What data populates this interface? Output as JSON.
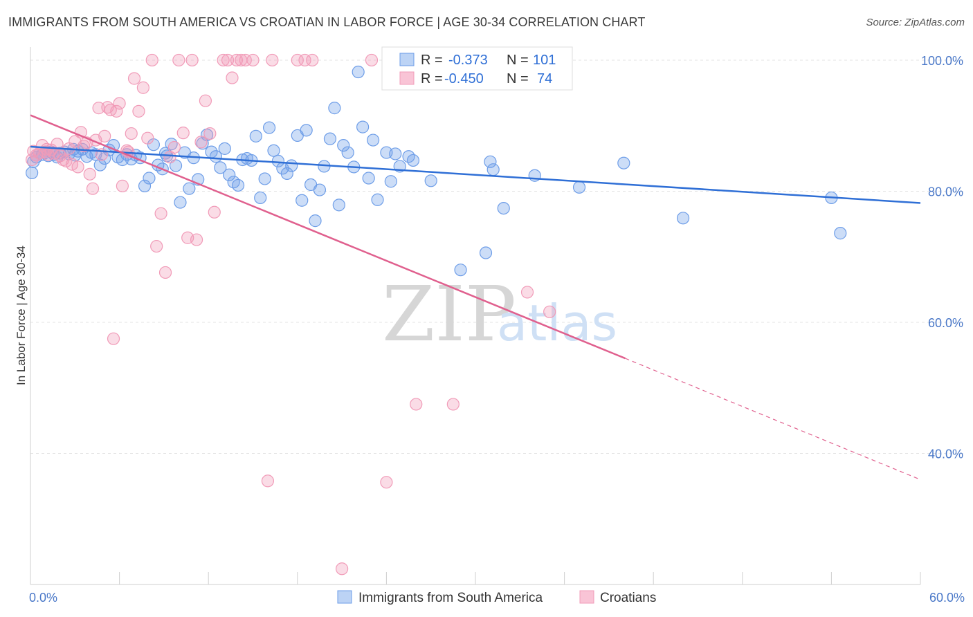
{
  "header": {
    "title": "IMMIGRANTS FROM SOUTH AMERICA VS CROATIAN IN LABOR FORCE | AGE 30-34 CORRELATION CHART",
    "source": "Source: ZipAtlas.com"
  },
  "watermark": {
    "zip": "ZIP",
    "atlas": "atlas"
  },
  "legend_box": {
    "rows": [
      {
        "r_label": "R =",
        "r_value": "-0.373",
        "n_label": "N =",
        "n_value": "101"
      },
      {
        "r_label": "R =",
        "r_value": "-0.450",
        "n_label": "N =",
        "n_value": "74"
      }
    ]
  },
  "chart_data": {
    "type": "scatter",
    "title": "IMMIGRANTS FROM SOUTH AMERICA VS CROATIAN IN LABOR FORCE | AGE 30-34 CORRELATION CHART",
    "ylabel": "In Labor Force | Age 30-34",
    "xlabel": "",
    "xlim": [
      0,
      60
    ],
    "ylim": [
      20,
      102
    ],
    "x_tick_labels": [
      "0.0%",
      "60.0%"
    ],
    "y_ticks": [
      40,
      60,
      80,
      100
    ],
    "y_tick_labels": [
      "40.0%",
      "60.0%",
      "80.0%",
      "100.0%"
    ],
    "grid": true,
    "legend_placement": "top-center",
    "series": [
      {
        "name": "Immigrants from South America",
        "color": "#6d9de8",
        "line_color": "#2f6fd6",
        "r": -0.373,
        "n": 101,
        "trend": {
          "x": [
            0,
            60
          ],
          "y": [
            86.8,
            78.2
          ]
        },
        "points": [
          [
            0.2,
            84.5
          ],
          [
            0.4,
            85.2
          ],
          [
            0.6,
            85.8
          ],
          [
            0.8,
            85.6
          ],
          [
            1.0,
            85.9
          ],
          [
            1.2,
            85.4
          ],
          [
            1.4,
            86.0
          ],
          [
            1.6,
            85.6
          ],
          [
            1.8,
            85.2
          ],
          [
            2.0,
            85.8
          ],
          [
            2.3,
            86.0
          ],
          [
            2.6,
            85.7
          ],
          [
            3.0,
            85.5
          ],
          [
            3.2,
            86.1
          ],
          [
            3.5,
            86.4
          ],
          [
            3.8,
            85.3
          ],
          [
            4.1,
            85.9
          ],
          [
            4.4,
            85.6
          ],
          [
            4.7,
            84.0
          ],
          [
            5.0,
            85.0
          ],
          [
            5.3,
            86.3
          ],
          [
            5.6,
            87.0
          ],
          [
            5.9,
            85.2
          ],
          [
            6.2,
            84.8
          ],
          [
            6.5,
            85.6
          ],
          [
            6.8,
            84.9
          ],
          [
            7.1,
            85.5
          ],
          [
            7.4,
            85.1
          ],
          [
            7.7,
            80.8
          ],
          [
            8.0,
            82.0
          ],
          [
            8.3,
            87.1
          ],
          [
            8.6,
            84.0
          ],
          [
            8.9,
            83.4
          ],
          [
            9.2,
            85.4
          ],
          [
            9.5,
            87.2
          ],
          [
            9.8,
            83.9
          ],
          [
            10.1,
            78.3
          ],
          [
            10.4,
            85.9
          ],
          [
            10.7,
            80.4
          ],
          [
            11.0,
            85.1
          ],
          [
            11.3,
            81.8
          ],
          [
            11.6,
            87.3
          ],
          [
            11.9,
            88.6
          ],
          [
            12.2,
            86.0
          ],
          [
            12.5,
            85.3
          ],
          [
            12.8,
            83.6
          ],
          [
            13.1,
            86.5
          ],
          [
            13.4,
            82.5
          ],
          [
            13.7,
            81.4
          ],
          [
            14.0,
            80.9
          ],
          [
            14.3,
            84.8
          ],
          [
            14.6,
            85.0
          ],
          [
            14.9,
            84.7
          ],
          [
            15.2,
            88.4
          ],
          [
            15.5,
            79.0
          ],
          [
            15.8,
            81.9
          ],
          [
            16.1,
            89.7
          ],
          [
            16.4,
            86.2
          ],
          [
            16.7,
            84.6
          ],
          [
            17.0,
            83.5
          ],
          [
            17.3,
            82.7
          ],
          [
            17.6,
            83.9
          ],
          [
            18.0,
            88.5
          ],
          [
            18.3,
            78.6
          ],
          [
            18.6,
            89.3
          ],
          [
            18.9,
            81.0
          ],
          [
            19.2,
            75.5
          ],
          [
            19.5,
            80.2
          ],
          [
            19.8,
            83.8
          ],
          [
            20.2,
            88.0
          ],
          [
            20.5,
            92.7
          ],
          [
            20.8,
            77.9
          ],
          [
            21.1,
            87.0
          ],
          [
            21.4,
            85.9
          ],
          [
            21.8,
            83.7
          ],
          [
            22.1,
            98.2
          ],
          [
            22.4,
            89.8
          ],
          [
            22.8,
            82.0
          ],
          [
            23.1,
            87.8
          ],
          [
            23.4,
            78.7
          ],
          [
            24.0,
            85.9
          ],
          [
            24.3,
            81.5
          ],
          [
            24.6,
            85.7
          ],
          [
            24.9,
            83.8
          ],
          [
            25.5,
            85.3
          ],
          [
            25.8,
            84.7
          ],
          [
            27.0,
            81.6
          ],
          [
            29.0,
            68.0
          ],
          [
            30.7,
            70.6
          ],
          [
            31.0,
            84.5
          ],
          [
            31.2,
            83.3
          ],
          [
            31.9,
            77.4
          ],
          [
            34.0,
            82.4
          ],
          [
            37.0,
            80.6
          ],
          [
            40.0,
            84.3
          ],
          [
            44.0,
            75.9
          ],
          [
            54.0,
            79.0
          ],
          [
            54.6,
            73.6
          ],
          [
            0.1,
            82.8
          ],
          [
            2.9,
            86.4
          ],
          [
            9.1,
            85.8
          ]
        ]
      },
      {
        "name": "Croatians",
        "color": "#f19bb8",
        "line_color": "#e0608e",
        "r": -0.45,
        "n": 74,
        "trend": {
          "x": [
            0,
            40.1
          ],
          "y": [
            91.6,
            54.5
          ],
          "dashed_to": {
            "x": 60,
            "y": 36.0
          }
        },
        "points": [
          [
            0.2,
            86.1
          ],
          [
            0.4,
            85.5
          ],
          [
            0.6,
            85.8
          ],
          [
            0.8,
            87.0
          ],
          [
            1.0,
            86.0
          ],
          [
            1.2,
            85.6
          ],
          [
            1.4,
            86.3
          ],
          [
            1.6,
            85.8
          ],
          [
            1.8,
            87.2
          ],
          [
            2.0,
            85.4
          ],
          [
            2.2,
            84.8
          ],
          [
            2.4,
            84.6
          ],
          [
            2.6,
            86.5
          ],
          [
            2.8,
            84.1
          ],
          [
            3.0,
            87.6
          ],
          [
            3.2,
            83.7
          ],
          [
            3.4,
            89.0
          ],
          [
            3.6,
            86.9
          ],
          [
            3.8,
            87.4
          ],
          [
            4.0,
            82.6
          ],
          [
            4.2,
            80.4
          ],
          [
            4.4,
            87.8
          ],
          [
            4.6,
            92.7
          ],
          [
            4.8,
            85.6
          ],
          [
            5.0,
            88.4
          ],
          [
            5.2,
            92.8
          ],
          [
            5.4,
            92.4
          ],
          [
            5.6,
            57.5
          ],
          [
            5.8,
            92.2
          ],
          [
            6.0,
            93.4
          ],
          [
            6.2,
            80.8
          ],
          [
            6.5,
            86.2
          ],
          [
            6.8,
            88.8
          ],
          [
            7.0,
            97.2
          ],
          [
            7.3,
            92.2
          ],
          [
            7.6,
            95.8
          ],
          [
            7.9,
            88.1
          ],
          [
            8.2,
            100.0
          ],
          [
            8.5,
            71.6
          ],
          [
            8.8,
            76.6
          ],
          [
            9.1,
            67.6
          ],
          [
            9.4,
            85.2
          ],
          [
            9.7,
            86.7
          ],
          [
            10.0,
            100.0
          ],
          [
            10.3,
            88.9
          ],
          [
            10.6,
            72.9
          ],
          [
            10.9,
            100.0
          ],
          [
            11.2,
            72.6
          ],
          [
            11.5,
            87.5
          ],
          [
            11.8,
            93.8
          ],
          [
            12.1,
            88.8
          ],
          [
            12.4,
            76.8
          ],
          [
            13.0,
            100.0
          ],
          [
            13.3,
            100.0
          ],
          [
            13.6,
            97.3
          ],
          [
            13.9,
            100.0
          ],
          [
            14.2,
            100.0
          ],
          [
            14.5,
            100.0
          ],
          [
            15.0,
            100.0
          ],
          [
            16.0,
            35.8
          ],
          [
            16.3,
            100.0
          ],
          [
            18.0,
            100.0
          ],
          [
            18.5,
            100.0
          ],
          [
            19.0,
            100.0
          ],
          [
            21.0,
            22.4
          ],
          [
            23.0,
            100.0
          ],
          [
            24.0,
            35.6
          ],
          [
            26.0,
            47.5
          ],
          [
            28.5,
            47.5
          ],
          [
            33.5,
            64.6
          ],
          [
            35.0,
            61.6
          ],
          [
            0.1,
            84.8
          ],
          [
            1.1,
            86.4
          ],
          [
            6.6,
            86.0
          ]
        ]
      }
    ]
  }
}
